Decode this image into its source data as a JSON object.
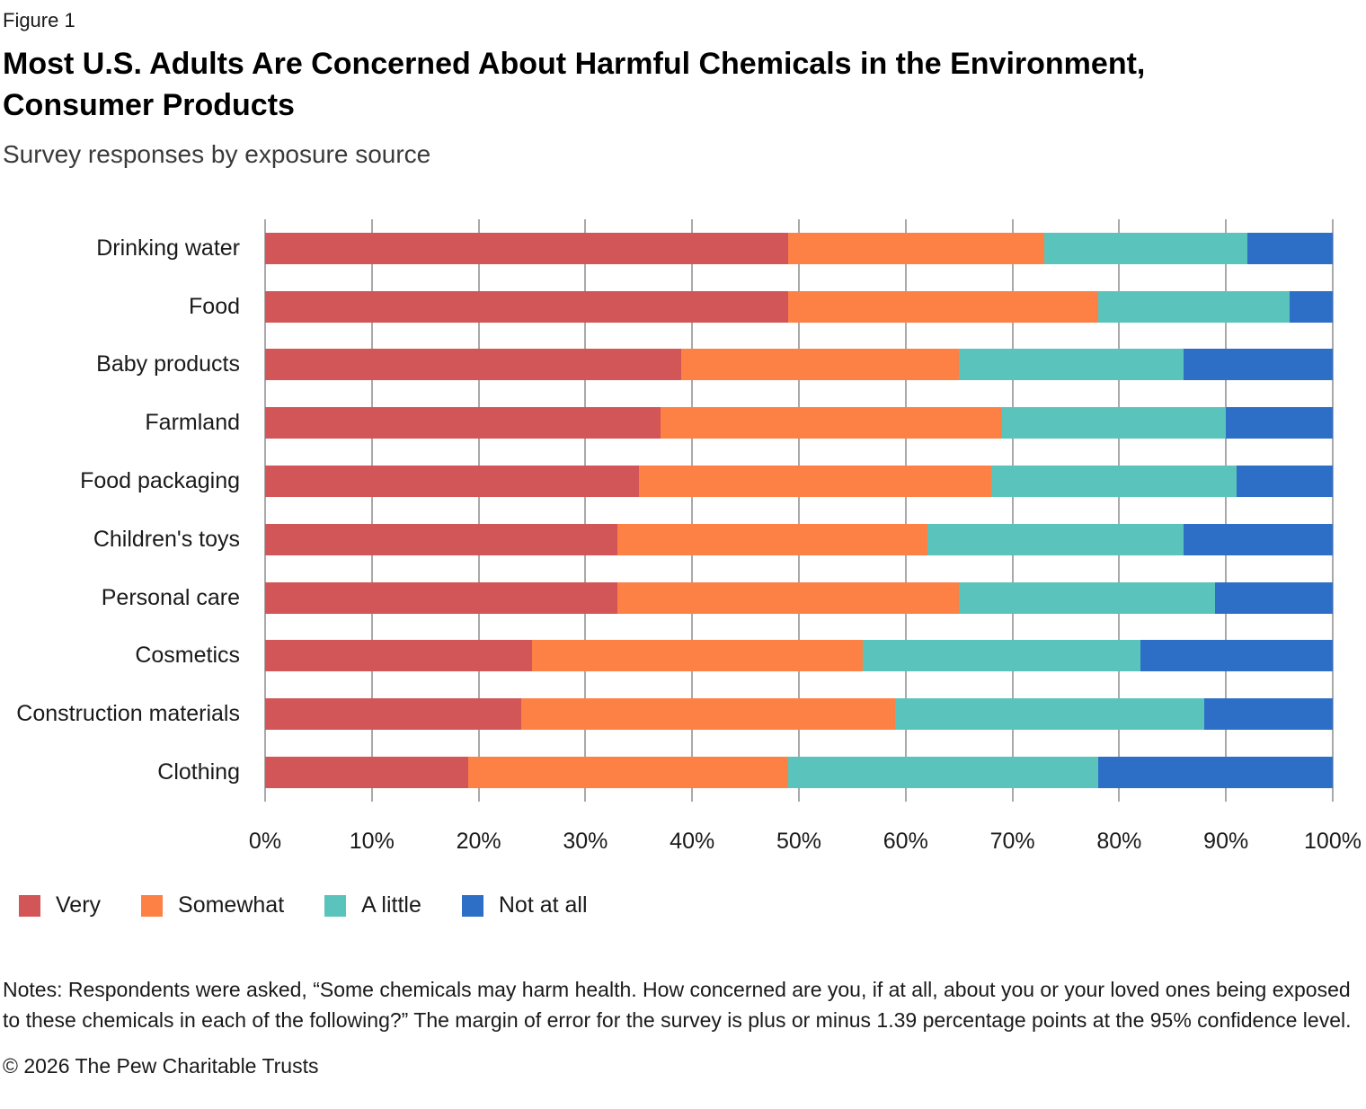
{
  "figure_label": "Figure 1",
  "title_line1": "Most U.S. Adults Are Concerned About Harmful Chemicals in the Environment,",
  "title_line2": "Consumer Products",
  "subtitle": "Survey responses by exposure source",
  "chart_data": {
    "type": "bar",
    "orientation": "horizontal",
    "stacked": true,
    "grid": true,
    "legend_position": "bottom",
    "categories": [
      "Drinking water",
      "Food",
      "Baby products",
      "Farmland",
      "Food packaging",
      "Children's toys",
      "Personal care",
      "Cosmetics",
      "Construction materials",
      "Clothing"
    ],
    "series": [
      {
        "name": "Very",
        "color": "#d25558",
        "values": [
          49,
          49,
          39,
          37,
          35,
          33,
          33,
          25,
          24,
          19
        ]
      },
      {
        "name": "Somewhat",
        "color": "#fd8145",
        "values": [
          24,
          29,
          26,
          32,
          33,
          29,
          32,
          31,
          35,
          30
        ]
      },
      {
        "name": "A little",
        "color": "#5ac4bc",
        "values": [
          19,
          18,
          21,
          21,
          23,
          24,
          24,
          26,
          29,
          29
        ]
      },
      {
        "name": "Not at all",
        "color": "#2d6fc7",
        "values": [
          8,
          4,
          14,
          10,
          9,
          14,
          11,
          18,
          12,
          22
        ]
      }
    ],
    "x_axis": {
      "min": 0,
      "max": 100,
      "tick_labels": [
        "0%",
        "10%",
        "20%",
        "30%",
        "40%",
        "50%",
        "60%",
        "70%",
        "80%",
        "90%",
        "100%"
      ]
    },
    "gridline_color": "#a9a9a9"
  },
  "notes": "Notes: Respondents were asked, “Some chemicals may harm health. How concerned are you, if at all, about you or your loved ones being exposed to these chemicals in each of the following?” The margin of error for the survey is plus or minus 1.39 percentage points at the 95% confidence level.",
  "copyright": "© 2026 The Pew Charitable Trusts"
}
